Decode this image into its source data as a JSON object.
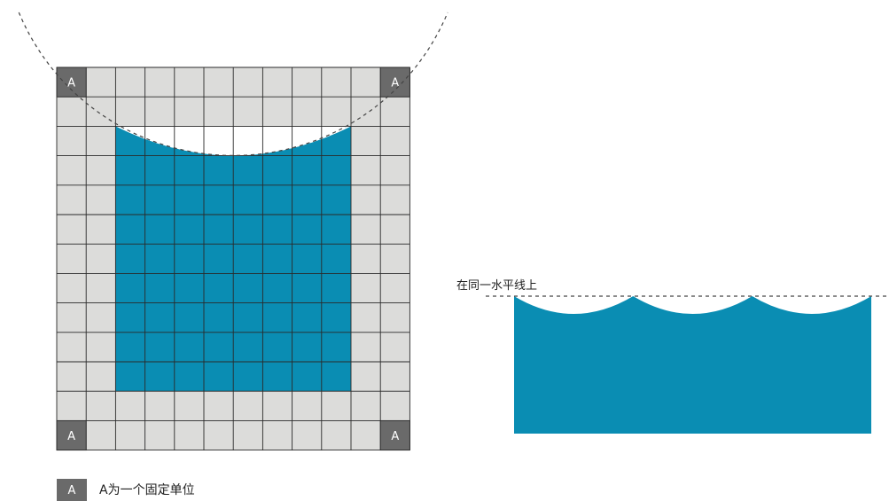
{
  "grid": {
    "rows": 13,
    "cols": 12,
    "corner_label": "A",
    "colors": {
      "cell_fill": "#dcdcda",
      "corner_fill": "#6a6a6a",
      "blue": "#0a8db3",
      "grid_line": "#2a2a2a",
      "notch": "#ffffff",
      "corner_text": "#ffffff"
    }
  },
  "waves": {
    "label": "在同一水平线上",
    "color": "#0a8db3"
  },
  "legend": {
    "swatch_label": "A",
    "text": "A为一个固定单位"
  }
}
